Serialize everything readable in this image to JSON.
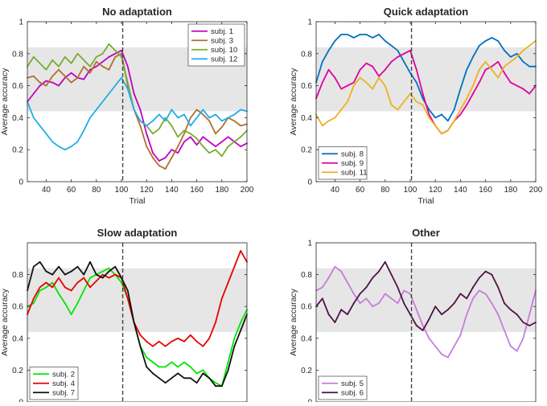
{
  "chart_data": [
    {
      "type": "line",
      "title": "No adaptation",
      "xlabel": "Trial",
      "ylabel": "Average accuracy",
      "xlim": [
        25,
        200
      ],
      "ylim": [
        0,
        1
      ],
      "xticks": [
        "40",
        "60",
        "80",
        "100",
        "120",
        "140",
        "160",
        "180",
        "200"
      ],
      "yticks": [
        "0",
        "0.2",
        "0.4",
        "0.6",
        "0.8",
        "1"
      ],
      "band": [
        0.44,
        0.84
      ],
      "vline": 101,
      "legend_position": "top-right",
      "series": [
        {
          "name": "subj. 1",
          "color": "#c000c0",
          "x": [
            25,
            30,
            35,
            40,
            45,
            50,
            55,
            60,
            65,
            70,
            75,
            80,
            85,
            90,
            95,
            100,
            105,
            110,
            115,
            120,
            125,
            130,
            135,
            140,
            145,
            150,
            155,
            160,
            165,
            170,
            175,
            180,
            185,
            190,
            195,
            200
          ],
          "y": [
            0.5,
            0.55,
            0.6,
            0.63,
            0.62,
            0.6,
            0.65,
            0.68,
            0.65,
            0.64,
            0.7,
            0.72,
            0.75,
            0.78,
            0.8,
            0.82,
            0.72,
            0.55,
            0.45,
            0.3,
            0.18,
            0.13,
            0.15,
            0.2,
            0.18,
            0.25,
            0.28,
            0.23,
            0.28,
            0.25,
            0.22,
            0.25,
            0.28,
            0.25,
            0.22,
            0.24
          ]
        },
        {
          "name": "subj. 3",
          "color": "#b07030",
          "x": [
            25,
            30,
            35,
            40,
            45,
            50,
            55,
            60,
            65,
            70,
            75,
            80,
            85,
            90,
            95,
            100,
            105,
            110,
            115,
            120,
            125,
            130,
            135,
            140,
            145,
            150,
            155,
            160,
            165,
            170,
            175,
            180,
            185,
            190,
            195,
            200
          ],
          "y": [
            0.65,
            0.66,
            0.62,
            0.6,
            0.66,
            0.7,
            0.66,
            0.62,
            0.65,
            0.72,
            0.68,
            0.75,
            0.72,
            0.7,
            0.78,
            0.8,
            0.6,
            0.45,
            0.35,
            0.22,
            0.15,
            0.1,
            0.08,
            0.15,
            0.22,
            0.3,
            0.4,
            0.45,
            0.42,
            0.38,
            0.3,
            0.34,
            0.4,
            0.38,
            0.35,
            0.36
          ]
        },
        {
          "name": "subj. 10",
          "color": "#77ac30",
          "x": [
            25,
            30,
            35,
            40,
            45,
            50,
            55,
            60,
            65,
            70,
            75,
            80,
            85,
            90,
            95,
            100,
            105,
            110,
            115,
            120,
            125,
            130,
            135,
            140,
            145,
            150,
            155,
            160,
            165,
            170,
            175,
            180,
            185,
            190,
            195,
            200
          ],
          "y": [
            0.72,
            0.78,
            0.74,
            0.7,
            0.76,
            0.72,
            0.78,
            0.74,
            0.8,
            0.76,
            0.72,
            0.78,
            0.8,
            0.86,
            0.82,
            0.78,
            0.62,
            0.45,
            0.38,
            0.35,
            0.3,
            0.33,
            0.4,
            0.35,
            0.28,
            0.32,
            0.3,
            0.27,
            0.22,
            0.18,
            0.2,
            0.16,
            0.22,
            0.25,
            0.28,
            0.32
          ]
        },
        {
          "name": "subj. 12",
          "color": "#1faeea",
          "x": [
            25,
            30,
            35,
            40,
            45,
            50,
            55,
            60,
            65,
            70,
            75,
            80,
            85,
            90,
            95,
            100,
            105,
            110,
            115,
            120,
            125,
            130,
            135,
            140,
            145,
            150,
            155,
            160,
            165,
            170,
            175,
            180,
            185,
            190,
            195,
            200
          ],
          "y": [
            0.5,
            0.4,
            0.35,
            0.3,
            0.25,
            0.22,
            0.2,
            0.22,
            0.25,
            0.32,
            0.4,
            0.45,
            0.5,
            0.55,
            0.6,
            0.65,
            0.58,
            0.45,
            0.38,
            0.35,
            0.38,
            0.42,
            0.38,
            0.45,
            0.4,
            0.42,
            0.35,
            0.4,
            0.45,
            0.4,
            0.42,
            0.38,
            0.4,
            0.42,
            0.45,
            0.44
          ]
        }
      ]
    },
    {
      "type": "line",
      "title": "Quick adaptation",
      "xlabel": "Trial",
      "ylabel": "Average accuracy",
      "xlim": [
        25,
        200
      ],
      "ylim": [
        0,
        1
      ],
      "xticks": [
        "40",
        "60",
        "80",
        "100",
        "120",
        "140",
        "160",
        "180",
        "200"
      ],
      "yticks": [
        "0",
        "0.2",
        "0.4",
        "0.6",
        "0.8",
        "1"
      ],
      "band": [
        0.44,
        0.84
      ],
      "vline": 101,
      "legend_position": "bottom-left",
      "series": [
        {
          "name": "subj. 8",
          "color": "#0072bd",
          "x": [
            25,
            30,
            35,
            40,
            45,
            50,
            55,
            60,
            65,
            70,
            75,
            80,
            85,
            90,
            95,
            100,
            105,
            110,
            115,
            120,
            125,
            130,
            135,
            140,
            145,
            150,
            155,
            160,
            165,
            170,
            175,
            180,
            185,
            190,
            195,
            200
          ],
          "y": [
            0.62,
            0.75,
            0.82,
            0.88,
            0.92,
            0.92,
            0.9,
            0.92,
            0.92,
            0.9,
            0.92,
            0.88,
            0.85,
            0.82,
            0.75,
            0.68,
            0.62,
            0.52,
            0.45,
            0.4,
            0.42,
            0.38,
            0.45,
            0.58,
            0.7,
            0.78,
            0.85,
            0.88,
            0.9,
            0.88,
            0.82,
            0.78,
            0.8,
            0.75,
            0.72,
            0.72
          ]
        },
        {
          "name": "subj. 9",
          "color": "#e0009f",
          "x": [
            25,
            30,
            35,
            40,
            45,
            50,
            55,
            60,
            65,
            70,
            75,
            80,
            85,
            90,
            95,
            100,
            105,
            110,
            115,
            120,
            125,
            130,
            135,
            140,
            145,
            150,
            155,
            160,
            165,
            170,
            175,
            180,
            185,
            190,
            195,
            200
          ],
          "y": [
            0.52,
            0.62,
            0.7,
            0.65,
            0.58,
            0.6,
            0.62,
            0.7,
            0.74,
            0.72,
            0.66,
            0.7,
            0.75,
            0.78,
            0.8,
            0.82,
            0.7,
            0.55,
            0.42,
            0.35,
            0.3,
            0.32,
            0.38,
            0.42,
            0.48,
            0.55,
            0.62,
            0.7,
            0.72,
            0.75,
            0.68,
            0.62,
            0.6,
            0.58,
            0.55,
            0.6
          ]
        },
        {
          "name": "subj. 11",
          "color": "#edb120",
          "x": [
            25,
            30,
            35,
            40,
            45,
            50,
            55,
            60,
            65,
            70,
            75,
            80,
            85,
            90,
            95,
            100,
            105,
            110,
            115,
            120,
            125,
            130,
            135,
            140,
            145,
            150,
            155,
            160,
            165,
            170,
            175,
            180,
            185,
            190,
            195,
            200
          ],
          "y": [
            0.42,
            0.35,
            0.38,
            0.4,
            0.45,
            0.5,
            0.6,
            0.65,
            0.62,
            0.58,
            0.65,
            0.6,
            0.48,
            0.45,
            0.5,
            0.55,
            0.5,
            0.48,
            0.4,
            0.35,
            0.3,
            0.32,
            0.38,
            0.45,
            0.52,
            0.6,
            0.7,
            0.75,
            0.7,
            0.65,
            0.72,
            0.75,
            0.78,
            0.82,
            0.85,
            0.88
          ]
        }
      ]
    },
    {
      "type": "line",
      "title": "Slow adaptation",
      "xlabel": "",
      "ylabel": "Average accuracy",
      "xlim": [
        25,
        200
      ],
      "ylim": [
        0,
        1
      ],
      "xticks": [],
      "yticks": [
        "0",
        "0.2",
        "0.4",
        "0.6",
        "0.8"
      ],
      "band": [
        0.44,
        0.84
      ],
      "vline": 101,
      "legend_position": "bottom-left",
      "series": [
        {
          "name": "subj. 2",
          "color": "#00e600",
          "x": [
            25,
            30,
            35,
            40,
            45,
            50,
            55,
            60,
            65,
            70,
            75,
            80,
            85,
            90,
            95,
            100,
            105,
            110,
            115,
            120,
            125,
            130,
            135,
            140,
            145,
            150,
            155,
            160,
            165,
            170,
            175,
            180,
            185,
            190,
            195,
            200
          ],
          "y": [
            0.6,
            0.62,
            0.7,
            0.72,
            0.75,
            0.68,
            0.62,
            0.55,
            0.62,
            0.7,
            0.78,
            0.8,
            0.82,
            0.84,
            0.8,
            0.75,
            0.65,
            0.5,
            0.35,
            0.28,
            0.25,
            0.22,
            0.22,
            0.25,
            0.22,
            0.25,
            0.22,
            0.18,
            0.2,
            0.15,
            0.12,
            0.1,
            0.25,
            0.4,
            0.5,
            0.58
          ]
        },
        {
          "name": "subj. 4",
          "color": "#e60000",
          "x": [
            25,
            30,
            35,
            40,
            45,
            50,
            55,
            60,
            65,
            70,
            75,
            80,
            85,
            90,
            95,
            100,
            105,
            110,
            115,
            120,
            125,
            130,
            135,
            140,
            145,
            150,
            155,
            160,
            165,
            170,
            175,
            180,
            185,
            190,
            195,
            200
          ],
          "y": [
            0.55,
            0.65,
            0.72,
            0.75,
            0.72,
            0.78,
            0.72,
            0.7,
            0.75,
            0.78,
            0.72,
            0.76,
            0.8,
            0.78,
            0.8,
            0.78,
            0.65,
            0.5,
            0.42,
            0.38,
            0.35,
            0.38,
            0.35,
            0.38,
            0.4,
            0.38,
            0.42,
            0.38,
            0.35,
            0.4,
            0.5,
            0.65,
            0.75,
            0.85,
            0.95,
            0.88
          ]
        },
        {
          "name": "subj. 7",
          "color": "#111111",
          "x": [
            25,
            30,
            35,
            40,
            45,
            50,
            55,
            60,
            65,
            70,
            75,
            80,
            85,
            90,
            95,
            100,
            105,
            110,
            115,
            120,
            125,
            130,
            135,
            140,
            145,
            150,
            155,
            160,
            165,
            170,
            175,
            180,
            185,
            190,
            195,
            200
          ],
          "y": [
            0.7,
            0.85,
            0.88,
            0.82,
            0.8,
            0.85,
            0.8,
            0.82,
            0.85,
            0.8,
            0.88,
            0.8,
            0.78,
            0.82,
            0.85,
            0.78,
            0.7,
            0.5,
            0.35,
            0.22,
            0.18,
            0.15,
            0.12,
            0.15,
            0.18,
            0.15,
            0.15,
            0.12,
            0.18,
            0.15,
            0.1,
            0.1,
            0.2,
            0.35,
            0.45,
            0.55
          ]
        }
      ]
    },
    {
      "type": "line",
      "title": "Other",
      "xlabel": "",
      "ylabel": "Average accuracy",
      "xlim": [
        25,
        200
      ],
      "ylim": [
        0,
        1
      ],
      "xticks": [],
      "yticks": [
        "0",
        "0.2",
        "0.4",
        "0.6",
        "0.8",
        "1"
      ],
      "band": [
        0.44,
        0.84
      ],
      "vline": 101,
      "legend_position": "bottom-left",
      "series": [
        {
          "name": "subj. 5",
          "color": "#c77cdb",
          "x": [
            25,
            30,
            35,
            40,
            45,
            50,
            55,
            60,
            65,
            70,
            75,
            80,
            85,
            90,
            95,
            100,
            105,
            110,
            115,
            120,
            125,
            130,
            135,
            140,
            145,
            150,
            155,
            160,
            165,
            170,
            175,
            180,
            185,
            190,
            195,
            200
          ],
          "y": [
            0.7,
            0.72,
            0.78,
            0.85,
            0.82,
            0.75,
            0.68,
            0.62,
            0.65,
            0.6,
            0.62,
            0.68,
            0.65,
            0.62,
            0.7,
            0.68,
            0.58,
            0.48,
            0.4,
            0.35,
            0.3,
            0.28,
            0.35,
            0.42,
            0.55,
            0.65,
            0.7,
            0.68,
            0.62,
            0.55,
            0.45,
            0.35,
            0.32,
            0.4,
            0.55,
            0.7
          ]
        },
        {
          "name": "subj. 6",
          "color": "#4d1247",
          "x": [
            25,
            30,
            35,
            40,
            45,
            50,
            55,
            60,
            65,
            70,
            75,
            80,
            85,
            90,
            95,
            100,
            105,
            110,
            115,
            120,
            125,
            130,
            135,
            140,
            145,
            150,
            155,
            160,
            165,
            170,
            175,
            180,
            185,
            190,
            195,
            200
          ],
          "y": [
            0.6,
            0.65,
            0.55,
            0.5,
            0.58,
            0.55,
            0.62,
            0.68,
            0.72,
            0.78,
            0.82,
            0.88,
            0.8,
            0.72,
            0.62,
            0.55,
            0.48,
            0.45,
            0.52,
            0.6,
            0.55,
            0.58,
            0.62,
            0.68,
            0.65,
            0.72,
            0.78,
            0.82,
            0.8,
            0.72,
            0.62,
            0.58,
            0.55,
            0.5,
            0.48,
            0.5
          ]
        }
      ]
    }
  ]
}
